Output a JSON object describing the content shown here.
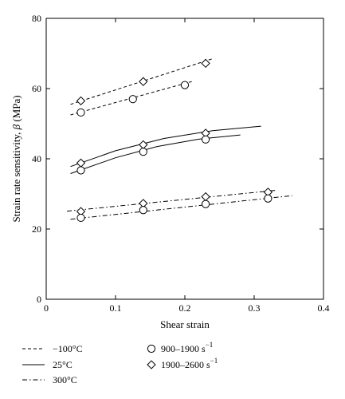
{
  "chart_data": {
    "type": "scatter",
    "xlabel": "Shear strain",
    "ylabel_main": "Strain rate sensitivity, ",
    "ylabel_symbol": "β",
    "ylabel_unit": " (MPa)",
    "xlim": [
      0,
      0.4
    ],
    "ylim": [
      0,
      80
    ],
    "xticks": [
      0,
      0.1,
      0.2,
      0.3,
      0.4
    ],
    "xtick_labels": [
      "0",
      "0.1",
      "0.2",
      "0.3",
      "0.4"
    ],
    "yticks": [
      0,
      20,
      40,
      60,
      80
    ],
    "ytick_labels": [
      "0",
      "20",
      "40",
      "60",
      "80"
    ],
    "grid": false,
    "legend_placement": "bottom",
    "series": [
      {
        "temp": "-100",
        "rate": "1900-2600",
        "marker": "diamond",
        "points": [
          [
            0.05,
            56.5
          ],
          [
            0.14,
            62
          ],
          [
            0.23,
            67.2
          ]
        ]
      },
      {
        "temp": "-100",
        "rate": "900-1900",
        "marker": "circle",
        "points": [
          [
            0.05,
            53.2
          ],
          [
            0.125,
            57
          ],
          [
            0.2,
            61
          ]
        ]
      },
      {
        "temp": "25",
        "rate": "1900-2600",
        "marker": "diamond",
        "points": [
          [
            0.05,
            38.8
          ],
          [
            0.14,
            44
          ],
          [
            0.23,
            47.3
          ]
        ]
      },
      {
        "temp": "25",
        "rate": "900-1900",
        "marker": "circle",
        "points": [
          [
            0.05,
            36.7
          ],
          [
            0.14,
            42
          ],
          [
            0.23,
            45.5
          ]
        ]
      },
      {
        "temp": "300",
        "rate": "1900-2600",
        "marker": "diamond",
        "points": [
          [
            0.05,
            25
          ],
          [
            0.14,
            27.3
          ],
          [
            0.23,
            29.2
          ],
          [
            0.32,
            30.5
          ]
        ]
      },
      {
        "temp": "300",
        "rate": "900-1900",
        "marker": "circle",
        "points": [
          [
            0.05,
            23.2
          ],
          [
            0.14,
            25.4
          ],
          [
            0.23,
            27.1
          ],
          [
            0.32,
            28.7
          ]
        ]
      }
    ],
    "fits": [
      {
        "style": "dashed",
        "points": [
          [
            0.035,
            55.5
          ],
          [
            0.24,
            68.5
          ]
        ]
      },
      {
        "style": "dashed",
        "points": [
          [
            0.035,
            52.5
          ],
          [
            0.21,
            62
          ]
        ]
      },
      {
        "style": "solid",
        "points": [
          [
            0.035,
            37.8
          ],
          [
            0.1,
            42.3
          ],
          [
            0.17,
            45.8
          ],
          [
            0.24,
            48
          ],
          [
            0.31,
            49.3
          ]
        ]
      },
      {
        "style": "solid",
        "points": [
          [
            0.035,
            35.8
          ],
          [
            0.1,
            40.3
          ],
          [
            0.16,
            43.5
          ],
          [
            0.22,
            45.6
          ],
          [
            0.28,
            46.8
          ]
        ]
      },
      {
        "style": "dashdot",
        "points": [
          [
            0.03,
            25.1
          ],
          [
            0.33,
            31
          ]
        ]
      },
      {
        "style": "dashdot",
        "points": [
          [
            0.035,
            22.8
          ],
          [
            0.355,
            29.5
          ]
        ]
      }
    ],
    "legend": {
      "lines": [
        {
          "style": "dashed",
          "label": "−100°C"
        },
        {
          "style": "solid",
          "label": "25°C"
        },
        {
          "style": "dashdot",
          "label": "300°C"
        }
      ],
      "markers": [
        {
          "marker": "circle",
          "label": "900–1900 s",
          "sup": "−1"
        },
        {
          "marker": "diamond",
          "label": "1900–2600 s",
          "sup": "−1"
        }
      ]
    }
  }
}
